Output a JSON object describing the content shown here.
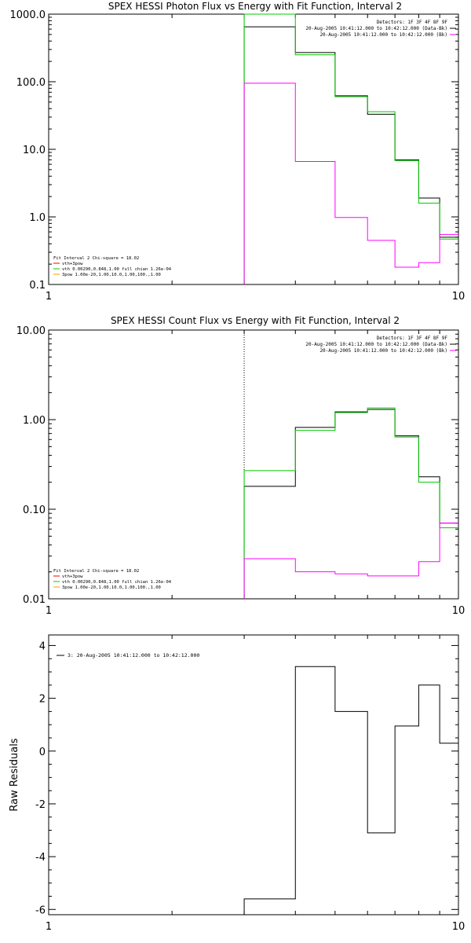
{
  "chart_data": [
    {
      "type": "line",
      "title": "SPEX HESSI Photon Flux vs Energy with Fit Function, Interval 2",
      "xscale": "log",
      "yscale": "log",
      "xlim": [
        1,
        10
      ],
      "ylim": [
        0.1,
        1000
      ],
      "xticks": [
        {
          "v": 1,
          "label": "1"
        },
        {
          "v": 10,
          "label": "10"
        }
      ],
      "yticks": [
        {
          "v": 0.1,
          "label": "0.1"
        },
        {
          "v": 1,
          "label": "1.0"
        },
        {
          "v": 10,
          "label": "10.0"
        },
        {
          "v": 100,
          "label": "100.0"
        },
        {
          "v": 1000,
          "label": "1000.0"
        }
      ],
      "vline": 3,
      "info_lines": [
        "Detectors: 1F 3F 4F 8F 9F",
        "20-Aug-2005 10:41:12.000 to 10:42:12.000 (Data-Bk)",
        "20-Aug-2005 10:41:12.000 to 10:42:12.000 (Bk)"
      ],
      "info_colors": [
        "#000000",
        "#000000",
        "#ff00ff"
      ],
      "fit_lines": [
        "Fit Interval 2   Chi-square = 18.02",
        "vth+3pow",
        "vth 0.00290,0.848,1.00   full chian 1.26e-04",
        "3pow 1.00e-20,1.00,10.0,1.00,100.,1.00"
      ],
      "fit_colors": [
        "#000000",
        "#ff0000",
        "#00cc00",
        "#ff9900"
      ],
      "edges": [
        3.0,
        4.0,
        5.0,
        6.0,
        7.0,
        8.0,
        9.0,
        10.0
      ],
      "series": [
        {
          "color": "#000000",
          "values": [
            650,
            270,
            62,
            33,
            7.0,
            1.9,
            0.5
          ]
        },
        {
          "color": "#00cc00",
          "values": [
            1000,
            250,
            60,
            36,
            6.8,
            1.6,
            0.47
          ]
        },
        {
          "color": "#ff00ff",
          "values": [
            95,
            6.6,
            0.98,
            0.45,
            0.18,
            0.21,
            0.55
          ]
        }
      ]
    },
    {
      "type": "line",
      "title": "SPEX HESSI Count Flux vs Energy with Fit Function, Interval 2",
      "xscale": "log",
      "yscale": "log",
      "xlim": [
        1,
        10
      ],
      "ylim": [
        0.01,
        10
      ],
      "xticks": [
        {
          "v": 1,
          "label": "1"
        },
        {
          "v": 10,
          "label": "10"
        }
      ],
      "yticks": [
        {
          "v": 0.01,
          "label": "0.01"
        },
        {
          "v": 0.1,
          "label": "0.10"
        },
        {
          "v": 1,
          "label": "1.00"
        },
        {
          "v": 10,
          "label": "10.00"
        }
      ],
      "vline": 3,
      "info_lines": [
        "Detectors: 1F 3F 4F 8F 9F",
        "20-Aug-2005 10:41:12.000 to 10:42:12.000 (Data-Bk)",
        "20-Aug-2005 10:41:12.000 to 10:42:12.000 (Bk)"
      ],
      "info_colors": [
        "#000000",
        "#000000",
        "#ff00ff"
      ],
      "fit_lines": [
        "Fit Interval 2   Chi-square = 18.02",
        "vth+3pow",
        "vth 0.00290,0.848,1.00   full chian 1.26e-04",
        "3pow 1.00e-20,1.00,10.0,1.00,100.,1.00"
      ],
      "fit_colors": [
        "#000000",
        "#ff0000",
        "#00cc00",
        "#ff9900"
      ],
      "edges": [
        3.0,
        4.0,
        5.0,
        6.0,
        7.0,
        8.0,
        9.0,
        10.0
      ],
      "series": [
        {
          "color": "#000000",
          "values": [
            0.18,
            0.82,
            1.22,
            1.3,
            0.66,
            0.23,
            0.07
          ]
        },
        {
          "color": "#00cc00",
          "values": [
            0.27,
            0.76,
            1.2,
            1.35,
            0.64,
            0.2,
            0.062
          ]
        },
        {
          "color": "#ff00ff",
          "values": [
            0.028,
            0.02,
            0.019,
            0.018,
            0.018,
            0.026,
            0.07
          ]
        }
      ]
    },
    {
      "type": "line",
      "title": "",
      "ylabel": "Raw Residuals",
      "xscale": "log",
      "yscale": "linear",
      "xlim": [
        1,
        10
      ],
      "ylim": [
        -6.2,
        4.4
      ],
      "xticks": [
        {
          "v": 1,
          "label": "1"
        },
        {
          "v": 10,
          "label": "10"
        }
      ],
      "yticks": [
        {
          "v": -6,
          "label": "-6"
        },
        {
          "v": -4,
          "label": "-4"
        },
        {
          "v": -2,
          "label": "-2"
        },
        {
          "v": 0,
          "label": "0"
        },
        {
          "v": 2,
          "label": "2"
        },
        {
          "v": 4,
          "label": "4"
        }
      ],
      "legend": "3: 20-Aug-2005 10:41:12.000 to 10:42:12.000",
      "edges": [
        3.0,
        4.0,
        5.0,
        6.0,
        7.0,
        8.0,
        9.0,
        10.0
      ],
      "series": [
        {
          "color": "#000000",
          "values": [
            -5.6,
            3.2,
            1.5,
            -3.1,
            0.95,
            2.5,
            0.3
          ]
        }
      ]
    }
  ]
}
